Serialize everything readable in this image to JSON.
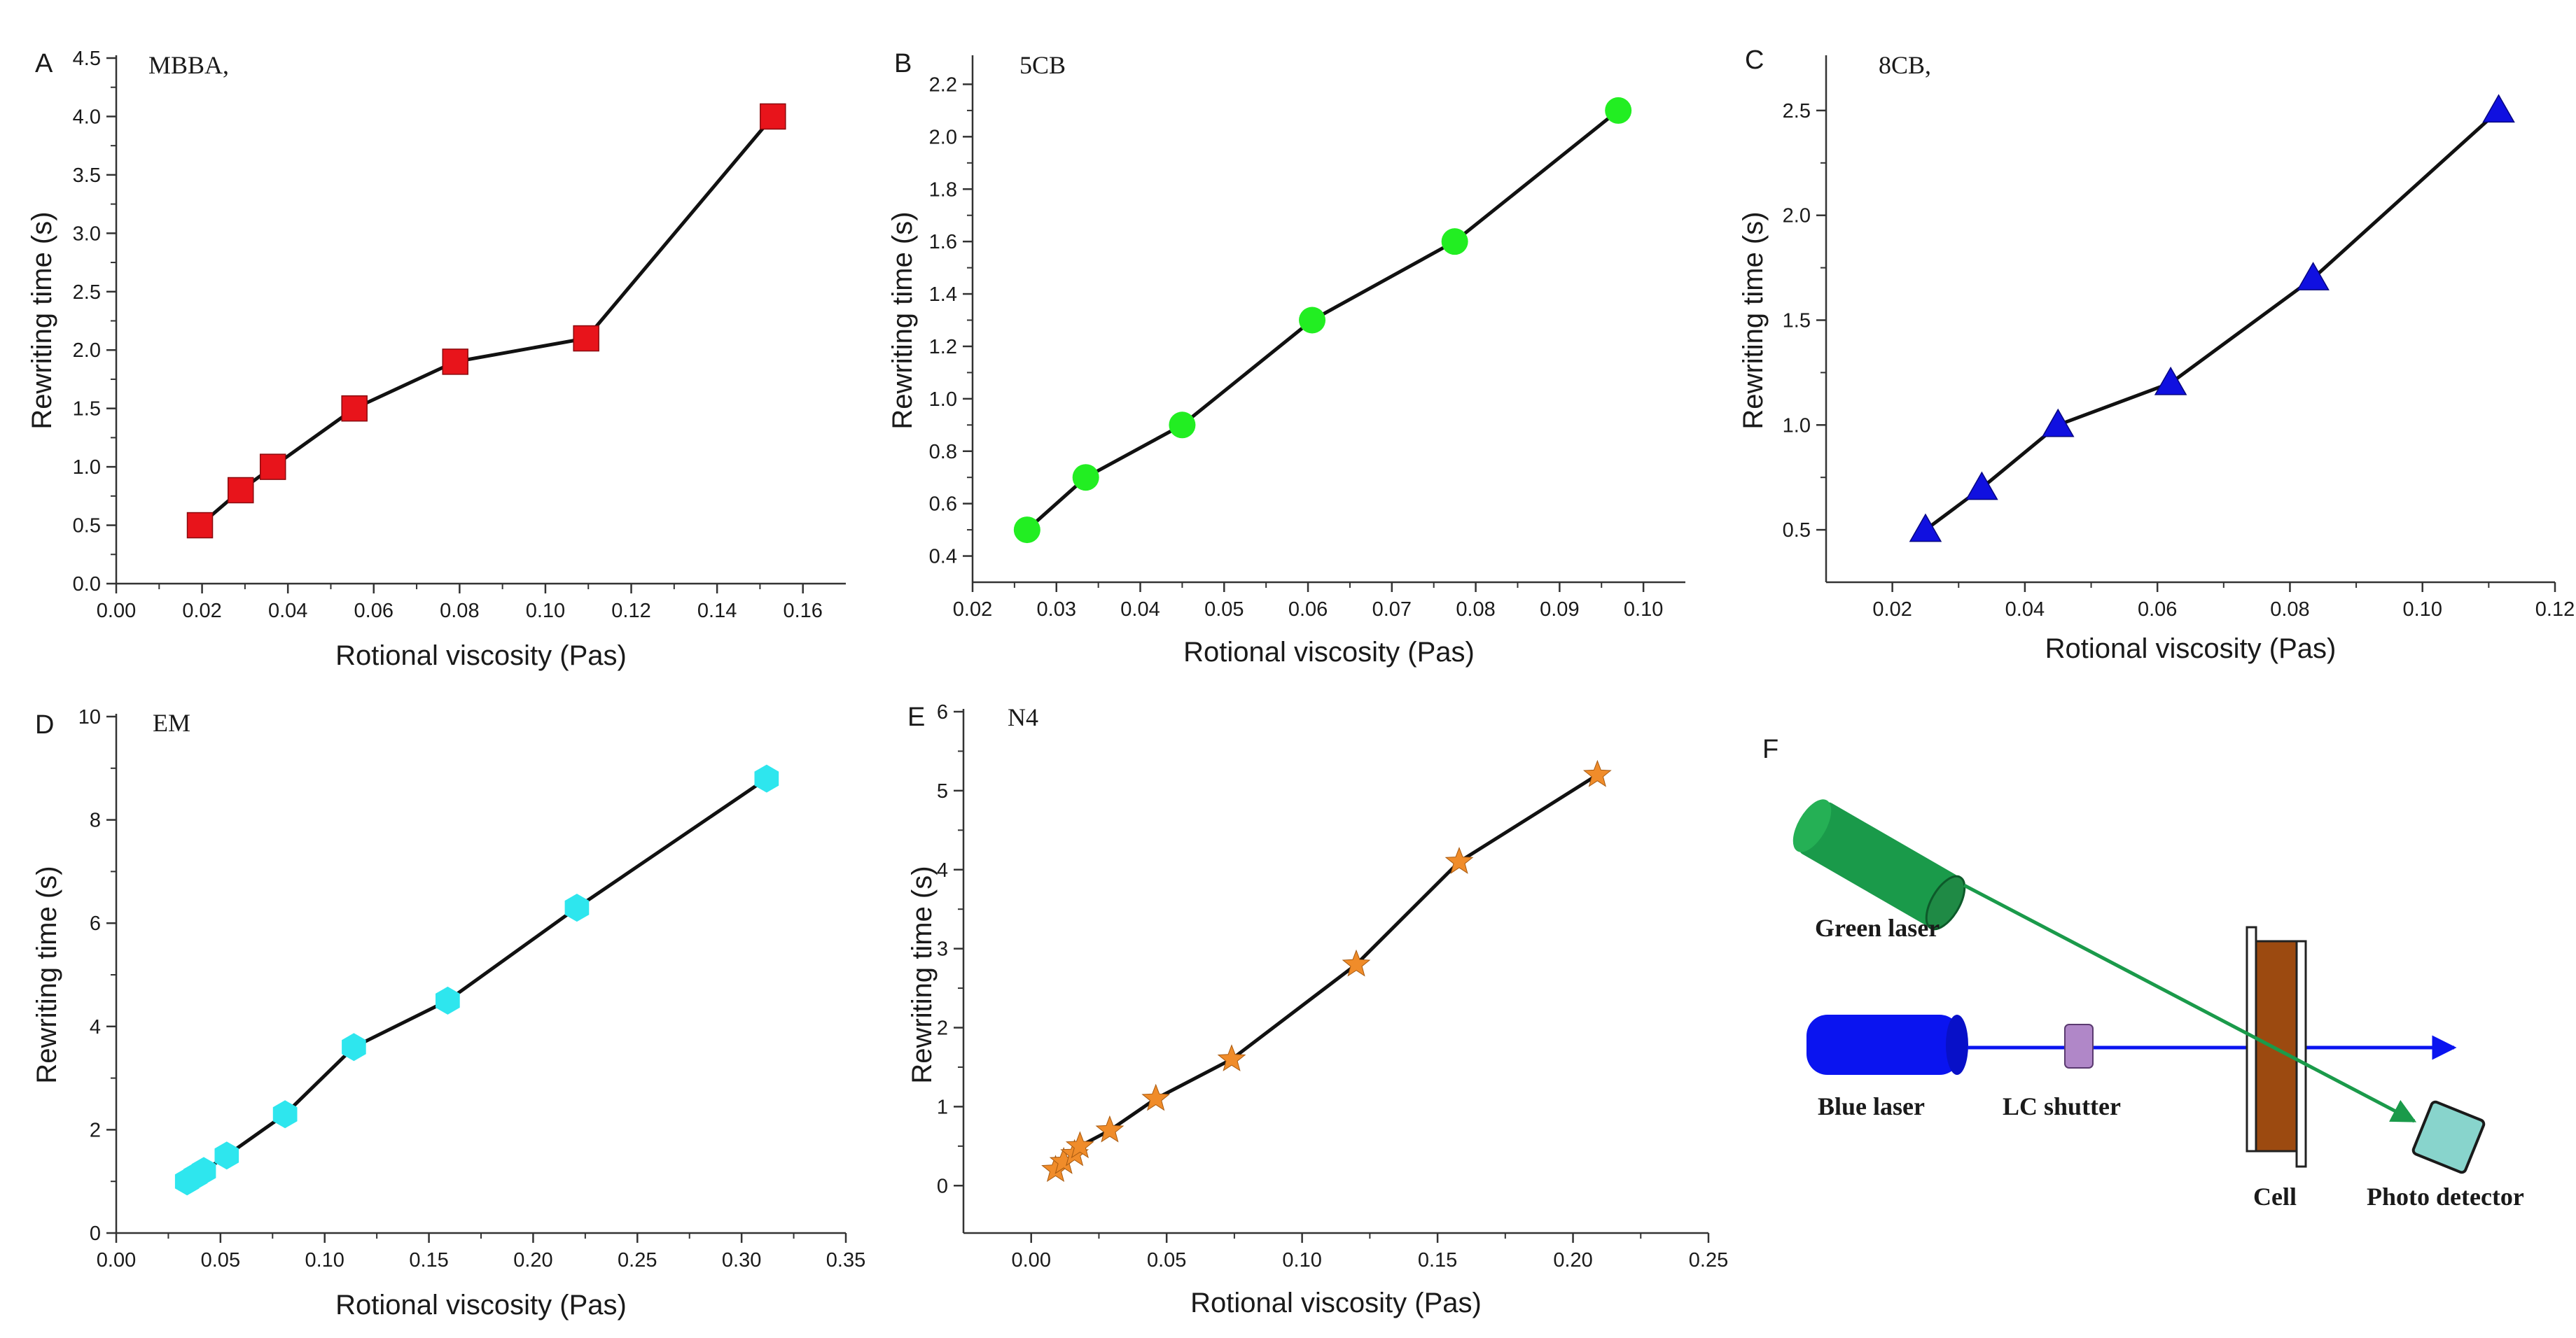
{
  "chart_data": [
    {
      "type": "line",
      "panel": "A",
      "annotation": "MBBA,",
      "xlabel": "Rotional viscosity (Pas)",
      "ylabel": "Rewriting time (s)",
      "xlim": [
        0.0,
        0.17
      ],
      "ylim": [
        0.0,
        4.5
      ],
      "xticks": [
        0.0,
        0.02,
        0.04,
        0.06,
        0.08,
        0.1,
        0.12,
        0.14,
        0.16
      ],
      "xtick_labels": [
        "0.00",
        "0.02",
        "0.04",
        "0.06",
        "0.08",
        "0.10",
        "0.12",
        "0.14",
        "0.16"
      ],
      "yticks": [
        0.0,
        0.5,
        1.0,
        1.5,
        2.0,
        2.5,
        3.0,
        3.5,
        4.0,
        4.5
      ],
      "ytick_labels": [
        "0.0",
        "0.5",
        "1.0",
        "1.5",
        "2.0",
        "2.5",
        "3.0",
        "3.5",
        "4.0",
        "4.5"
      ],
      "marker": "square",
      "marker_color": "#e8141b",
      "series": [
        {
          "name": "MBBA",
          "x": [
            0.0195,
            0.029,
            0.0365,
            0.0555,
            0.079,
            0.1095,
            0.153
          ],
          "y": [
            0.5,
            0.8,
            1.0,
            1.5,
            1.9,
            2.1,
            4.0
          ]
        }
      ]
    },
    {
      "type": "line",
      "panel": "B",
      "annotation": "5CB",
      "xlabel": "Rotional viscosity (Pas)",
      "ylabel": "Rewriting time (s)",
      "xlim": [
        0.02,
        0.105
      ],
      "ylim": [
        0.3,
        2.3
      ],
      "xticks": [
        0.02,
        0.03,
        0.04,
        0.05,
        0.06,
        0.07,
        0.08,
        0.09,
        0.1
      ],
      "xtick_labels": [
        "0.02",
        "0.03",
        "0.04",
        "0.05",
        "0.06",
        "0.07",
        "0.08",
        "0.09",
        "0.10"
      ],
      "yticks": [
        0.4,
        0.6,
        0.8,
        1.0,
        1.2,
        1.4,
        1.6,
        1.8,
        2.0,
        2.2
      ],
      "ytick_labels": [
        "0.4",
        "0.6",
        "0.8",
        "1.0",
        "1.2",
        "1.4",
        "1.6",
        "1.8",
        "2.0",
        "2.2"
      ],
      "marker": "circle",
      "marker_color": "#22ee22",
      "series": [
        {
          "name": "5CB",
          "x": [
            0.0265,
            0.0335,
            0.045,
            0.0605,
            0.0775,
            0.097
          ],
          "y": [
            0.5,
            0.7,
            0.9,
            1.3,
            1.6,
            2.1
          ]
        }
      ]
    },
    {
      "type": "line",
      "panel": "C",
      "annotation": "8CB,",
      "xlabel": "Rotional viscosity (Pas)",
      "ylabel": "Rewriting time (s)",
      "xlim": [
        0.01,
        0.12
      ],
      "ylim": [
        0.25,
        2.75
      ],
      "xticks": [
        0.02,
        0.04,
        0.06,
        0.08,
        0.1,
        0.12
      ],
      "xtick_labels": [
        "0.02",
        "0.04",
        "0.06",
        "0.08",
        "0.10",
        "0.12"
      ],
      "yticks": [
        0.5,
        1.0,
        1.5,
        2.0,
        2.5
      ],
      "ytick_labels": [
        "0.5",
        "1.0",
        "1.5",
        "2.0",
        "2.5"
      ],
      "marker": "triangle",
      "marker_color": "#1010e0",
      "series": [
        {
          "name": "8CB",
          "x": [
            0.025,
            0.0335,
            0.045,
            0.062,
            0.0835,
            0.1115
          ],
          "y": [
            0.5,
            0.7,
            1.0,
            1.2,
            1.7,
            2.5
          ]
        }
      ]
    },
    {
      "type": "line",
      "panel": "D",
      "annotation": "EM",
      "xlabel": "Rotional viscosity (Pas)",
      "ylabel": "Rewriting time (s)",
      "xlim": [
        0.0,
        0.35
      ],
      "ylim": [
        0,
        10
      ],
      "xticks": [
        0.0,
        0.05,
        0.1,
        0.15,
        0.2,
        0.25,
        0.3,
        0.35
      ],
      "xtick_labels": [
        "0.00",
        "0.05",
        "0.10",
        "0.15",
        "0.20",
        "0.25",
        "0.30",
        "0.35"
      ],
      "yticks": [
        0,
        2,
        4,
        6,
        8,
        10
      ],
      "ytick_labels": [
        "0",
        "2",
        "4",
        "6",
        "8",
        "10"
      ],
      "marker": "hexagon",
      "marker_color": "#2ee6ee",
      "series": [
        {
          "name": "EM",
          "x": [
            0.034,
            0.038,
            0.042,
            0.053,
            0.081,
            0.114,
            0.159,
            0.221,
            0.312
          ],
          "y": [
            1.0,
            1.1,
            1.2,
            1.5,
            2.3,
            3.6,
            4.5,
            6.3,
            8.8
          ]
        }
      ]
    },
    {
      "type": "line",
      "panel": "E",
      "annotation": "N4",
      "xlabel": "Rotional viscosity (Pas)",
      "ylabel": "Rewriting time (s)",
      "xlim": [
        -0.025,
        0.25
      ],
      "ylim": [
        -0.6,
        6
      ],
      "xticks": [
        0.0,
        0.05,
        0.1,
        0.15,
        0.2,
        0.25
      ],
      "xtick_labels": [
        "0.00",
        "0.05",
        "0.10",
        "0.15",
        "0.20",
        "0.25"
      ],
      "yticks": [
        0,
        1,
        2,
        3,
        4,
        5,
        6
      ],
      "ytick_labels": [
        "0",
        "1",
        "2",
        "3",
        "4",
        "5",
        "6"
      ],
      "marker": "star",
      "marker_color": "#f08c2a",
      "series": [
        {
          "name": "N4",
          "x": [
            0.009,
            0.012,
            0.016,
            0.018,
            0.029,
            0.046,
            0.074,
            0.12,
            0.158,
            0.209
          ],
          "y": [
            0.2,
            0.3,
            0.4,
            0.5,
            0.7,
            1.1,
            1.6,
            2.8,
            4.1,
            5.2
          ]
        }
      ]
    }
  ],
  "diagram": {
    "panel": "F",
    "labels": {
      "green_laser": "Green laser",
      "blue_laser": "Blue laser",
      "lc_shutter": "LC shutter",
      "cell": "Cell",
      "photo_detector": "Photo detector"
    },
    "colors": {
      "green_laser": "#1a9a4a",
      "blue_laser": "#0a14f0",
      "shutter": "#b087c8",
      "cell": "#9c4a10",
      "detector": "#88d4cc"
    }
  }
}
